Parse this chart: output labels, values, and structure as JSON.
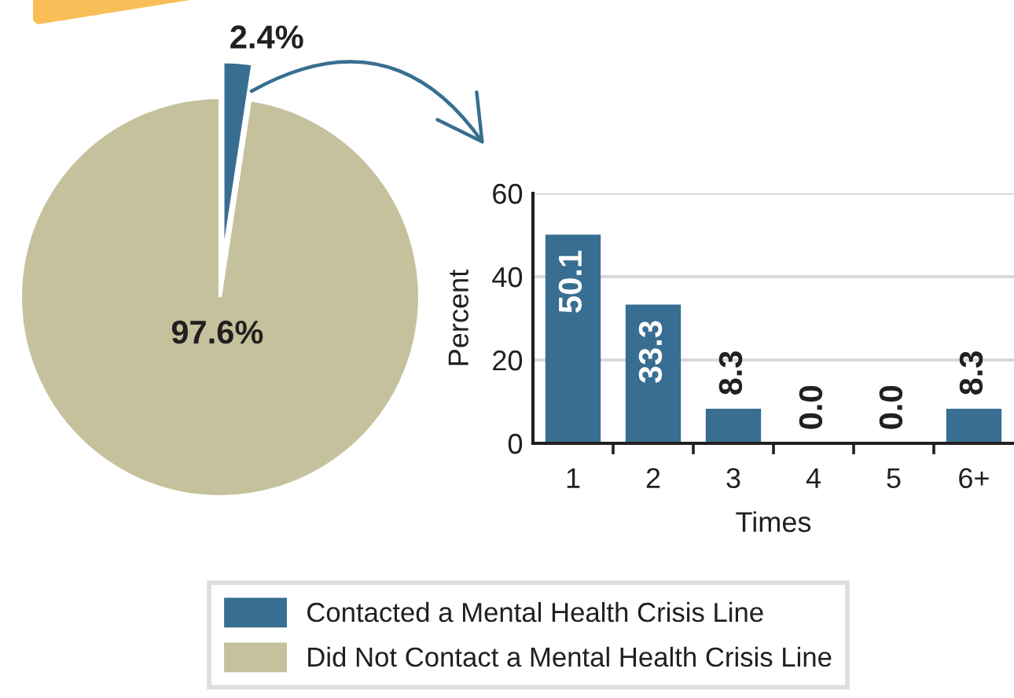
{
  "chart_data": [
    {
      "type": "pie",
      "categories": [
        "Contacted a Mental Health Crisis Line",
        "Did Not Contact a Mental Health Crisis Line"
      ],
      "values": [
        2.4,
        97.6
      ],
      "colors": [
        "#386e91",
        "#c4c19c"
      ],
      "value_labels": [
        "2.4%",
        "97.6%"
      ],
      "legend": "bottom"
    },
    {
      "type": "bar",
      "categories": [
        "1",
        "2",
        "3",
        "4",
        "5",
        "6+"
      ],
      "values": [
        50.1,
        33.3,
        8.3,
        0.0,
        0.0,
        8.3
      ],
      "color": "#386e91",
      "value_labels": [
        "50.1",
        "33.3",
        "8.3",
        "0.0",
        "0.0",
        "8.3"
      ],
      "xlabel": "Times",
      "ylabel": "Percent",
      "ylim": [
        0,
        60
      ],
      "yticks": [
        0,
        20,
        40,
        60
      ],
      "grid": "y"
    }
  ]
}
